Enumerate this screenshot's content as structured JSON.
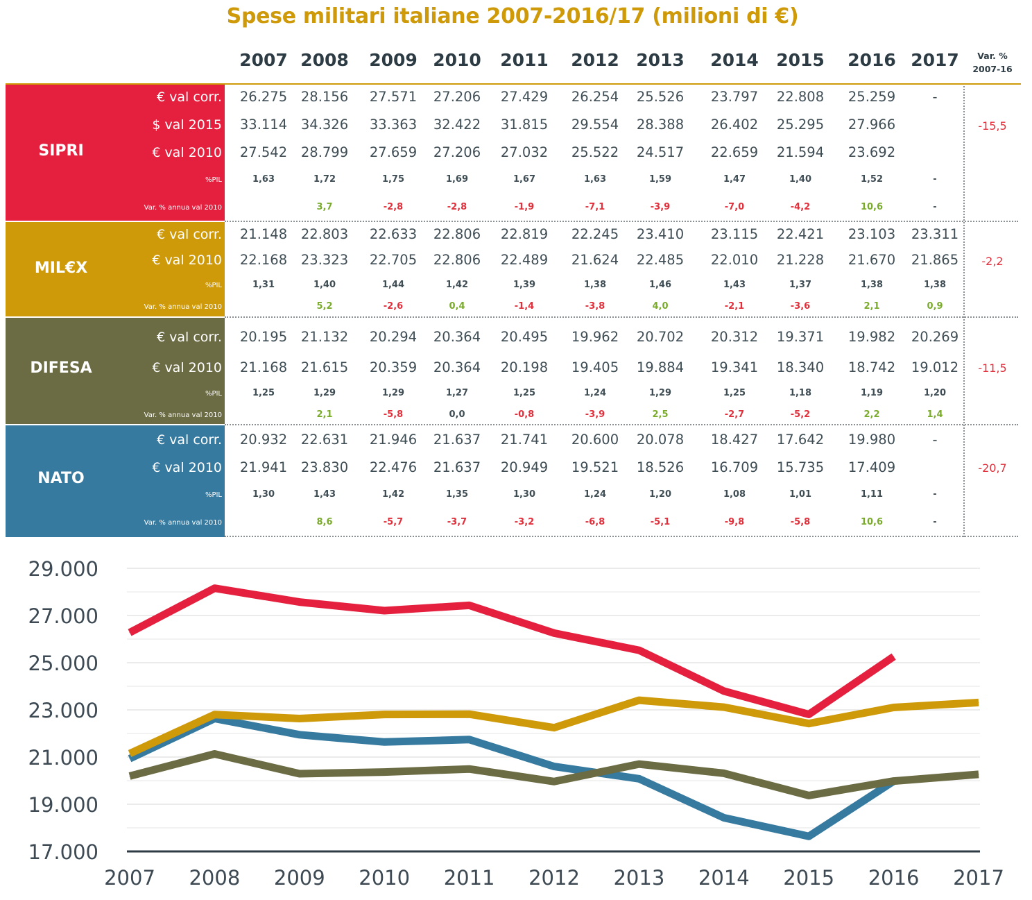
{
  "title": "Spese militari italiane 2007-2016/17 (milioni di €)",
  "header": {
    "years": [
      "2007",
      "2008",
      "2009",
      "2010",
      "2011",
      "2012",
      "2013",
      "2014",
      "2015",
      "2016",
      "2017"
    ],
    "var_label_1": "Var. %",
    "var_label_2": "2007-16"
  },
  "colors": {
    "sipri": "#e5203f",
    "milex": "#cf9a0a",
    "difesa": "#6b6b44",
    "nato": "#367aa0",
    "accent_title": "#cf9a0a",
    "positive": "#7aab2c",
    "negative": "#e0303b"
  },
  "table": {
    "sipri": {
      "name": "SIPRI",
      "var_total": "-15,5",
      "rows": [
        {
          "label": "€ val corr.",
          "values": [
            "26.275",
            "28.156",
            "27.571",
            "27.206",
            "27.429",
            "26.254",
            "25.526",
            "23.797",
            "22.808",
            "25.259",
            "-"
          ]
        },
        {
          "label": "$ val 2015",
          "values": [
            "33.114",
            "34.326",
            "33.363",
            "32.422",
            "31.815",
            "29.554",
            "28.388",
            "26.402",
            "25.295",
            "27.966",
            ""
          ]
        },
        {
          "label": "€ val 2010",
          "values": [
            "27.542",
            "28.799",
            "27.659",
            "27.206",
            "27.032",
            "25.522",
            "24.517",
            "22.659",
            "21.594",
            "23.692",
            ""
          ]
        },
        {
          "label": "%PIL",
          "values": [
            "1,63",
            "1,72",
            "1,75",
            "1,69",
            "1,67",
            "1,63",
            "1,59",
            "1,47",
            "1,40",
            "1,52",
            "-"
          ]
        },
        {
          "label": "Var. % annua val 2010",
          "values": [
            "",
            "3,7",
            "-2,8",
            "-2,8",
            "-1,9",
            "-7,1",
            "-3,9",
            "-7,0",
            "-4,2",
            "10,6",
            "-"
          ]
        }
      ]
    },
    "milex": {
      "name": "MIL€X",
      "var_total": "-2,2",
      "rows": [
        {
          "label": "€ val corr.",
          "values": [
            "21.148",
            "22.803",
            "22.633",
            "22.806",
            "22.819",
            "22.245",
            "23.410",
            "23.115",
            "22.421",
            "23.103",
            "23.311"
          ]
        },
        {
          "label": "€ val 2010",
          "values": [
            "22.168",
            "23.323",
            "22.705",
            "22.806",
            "22.489",
            "21.624",
            "22.485",
            "22.010",
            "21.228",
            "21.670",
            "21.865"
          ]
        },
        {
          "label": "%PIL",
          "values": [
            "1,31",
            "1,40",
            "1,44",
            "1,42",
            "1,39",
            "1,38",
            "1,46",
            "1,43",
            "1,37",
            "1,38",
            "1,38"
          ]
        },
        {
          "label": "Var. % annua val 2010",
          "values": [
            "",
            "5,2",
            "-2,6",
            "0,4",
            "-1,4",
            "-3,8",
            "4,0",
            "-2,1",
            "-3,6",
            "2,1",
            "0,9"
          ]
        }
      ]
    },
    "difesa": {
      "name": "DIFESA",
      "var_total": "-11,5",
      "rows": [
        {
          "label": "€ val corr.",
          "values": [
            "20.195",
            "21.132",
            "20.294",
            "20.364",
            "20.495",
            "19.962",
            "20.702",
            "20.312",
            "19.371",
            "19.982",
            "20.269"
          ]
        },
        {
          "label": "€ val 2010",
          "values": [
            "21.168",
            "21.615",
            "20.359",
            "20.364",
            "20.198",
            "19.405",
            "19.884",
            "19.341",
            "18.340",
            "18.742",
            "19.012"
          ]
        },
        {
          "label": "%PIL",
          "values": [
            "1,25",
            "1,29",
            "1,29",
            "1,27",
            "1,25",
            "1,24",
            "1,29",
            "1,25",
            "1,18",
            "1,19",
            "1,20"
          ]
        },
        {
          "label": "Var. % annua val 2010",
          "values": [
            "",
            "2,1",
            "-5,8",
            "0,0",
            "-0,8",
            "-3,9",
            "2,5",
            "-2,7",
            "-5,2",
            "2,2",
            "1,4"
          ]
        }
      ]
    },
    "nato": {
      "name": "NATO",
      "var_total": "-20,7",
      "rows": [
        {
          "label": "€ val corr.",
          "values": [
            "20.932",
            "22.631",
            "21.946",
            "21.637",
            "21.741",
            "20.600",
            "20.078",
            "18.427",
            "17.642",
            "19.980",
            "-"
          ]
        },
        {
          "label": "€ val 2010",
          "values": [
            "21.941",
            "23.830",
            "22.476",
            "21.637",
            "20.949",
            "19.521",
            "18.526",
            "16.709",
            "15.735",
            "17.409",
            ""
          ]
        },
        {
          "label": "%PIL",
          "values": [
            "1,30",
            "1,43",
            "1,42",
            "1,35",
            "1,30",
            "1,24",
            "1,20",
            "1,08",
            "1,01",
            "1,11",
            "-"
          ]
        },
        {
          "label": "Var. % annua val 2010",
          "values": [
            "",
            "8,6",
            "-5,7",
            "-3,7",
            "-3,2",
            "-6,8",
            "-5,1",
            "-9,8",
            "-5,8",
            "10,6",
            "-"
          ]
        }
      ]
    }
  },
  "chart_data": {
    "type": "line",
    "x": [
      2007,
      2008,
      2009,
      2010,
      2011,
      2012,
      2013,
      2014,
      2015,
      2016,
      2017
    ],
    "x_tick_labels": [
      "2007",
      "2008",
      "2009",
      "2010",
      "2011",
      "2012",
      "2013",
      "2014",
      "2015",
      "2016",
      "2017"
    ],
    "y_tick_labels": [
      "29.000",
      "27.000",
      "25.000",
      "23.000",
      "21.000",
      "19.000",
      "17.000"
    ],
    "y_ticks": [
      29000,
      27000,
      25000,
      23000,
      21000,
      19000,
      17000
    ],
    "ylim": [
      17000,
      29000
    ],
    "grid": true,
    "series": [
      {
        "name": "SIPRI",
        "color": "#e5203f",
        "values": [
          26275,
          28156,
          27571,
          27206,
          27429,
          26254,
          25526,
          23797,
          22808,
          25259,
          null
        ]
      },
      {
        "name": "MIL€X",
        "color": "#cf9a0a",
        "values": [
          21148,
          22803,
          22633,
          22806,
          22819,
          22245,
          23410,
          23115,
          22421,
          23103,
          23311
        ]
      },
      {
        "name": "DIFESA",
        "color": "#6b6b44",
        "values": [
          20195,
          21132,
          20294,
          20364,
          20495,
          19962,
          20702,
          20312,
          19371,
          19982,
          20269
        ]
      },
      {
        "name": "NATO",
        "color": "#367aa0",
        "values": [
          20932,
          22631,
          21946,
          21637,
          21741,
          20600,
          20078,
          18427,
          17642,
          19980,
          null
        ]
      }
    ]
  }
}
